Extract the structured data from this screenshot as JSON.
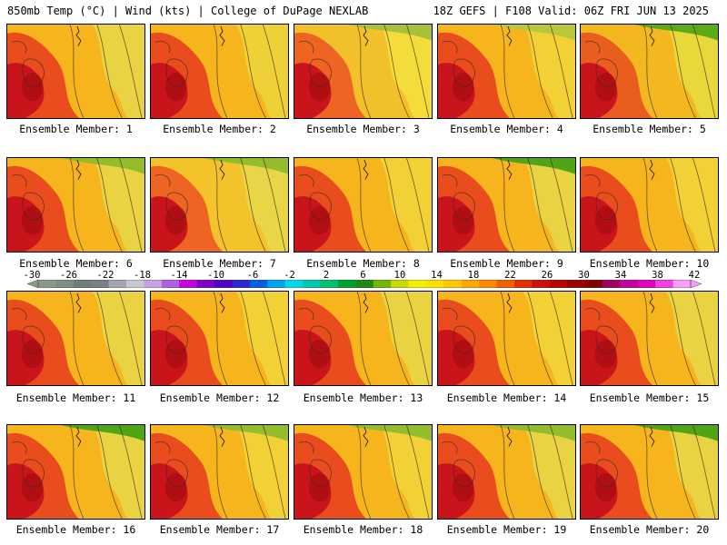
{
  "header": {
    "left": "850mb Temp (°C) | Wind (kts) | College of DuPage NEXLAB",
    "right": "18Z GEFS | F108 Valid: 06Z FRI JUN 13 2025"
  },
  "members": [
    "Ensemble Member: 1",
    "Ensemble Member: 2",
    "Ensemble Member: 3",
    "Ensemble Member: 4",
    "Ensemble Member: 5",
    "Ensemble Member: 6",
    "Ensemble Member: 7",
    "Ensemble Member: 8",
    "Ensemble Member: 9",
    "Ensemble Member: 10",
    "Ensemble Member: 11",
    "Ensemble Member: 12",
    "Ensemble Member: 13",
    "Ensemble Member: 14",
    "Ensemble Member: 15",
    "Ensemble Member: 16",
    "Ensemble Member: 17",
    "Ensemble Member: 18",
    "Ensemble Member: 19",
    "Ensemble Member: 20"
  ],
  "colorbar": {
    "tick_labels": [
      "-30",
      "-26",
      "-22",
      "-18",
      "-14",
      "-10",
      "-6",
      "-2",
      "2",
      "6",
      "10",
      "14",
      "18",
      "22",
      "26",
      "30",
      "34",
      "38",
      "42"
    ],
    "colors": [
      "#8a9a8a",
      "#7d8e84",
      "#6e7e78",
      "#7a7f86",
      "#a3a6ac",
      "#c5c9cd",
      "#c8a2e0",
      "#b35ee0",
      "#c800e0",
      "#8000c8",
      "#5000c8",
      "#2a2ad0",
      "#0060e0",
      "#00a0f0",
      "#00d8e8",
      "#00c8b0",
      "#00c070",
      "#00a030",
      "#1a8a10",
      "#70b800",
      "#c8d800",
      "#f0f000",
      "#ffe000",
      "#ffc800",
      "#ffa800",
      "#ff8800",
      "#f06000",
      "#e03000",
      "#d01010",
      "#b80000",
      "#9a0000",
      "#800000",
      "#a00060",
      "#c000a0",
      "#e000c0",
      "#f040e0",
      "#f8a0f8"
    ]
  },
  "panel_fills": [
    {
      "base": "#f6b51c",
      "warm": "#e8411f",
      "hot": "#c9141b",
      "cool": "#e6d84a",
      "green": null
    },
    {
      "base": "#f6b51c",
      "warm": "#e8411f",
      "hot": "#c9141b",
      "cool": "#ecd53c",
      "green": null
    },
    {
      "base": "#f2c02a",
      "warm": "#ec5a22",
      "hot": "#c9141b",
      "cool": "#f4e13e",
      "green": "#a9c13a"
    },
    {
      "base": "#f6b51c",
      "warm": "#e8411f",
      "hot": "#c9141b",
      "cool": "#f0d63a",
      "green": "#b8c83a"
    },
    {
      "base": "#f3b820",
      "warm": "#e8541f",
      "hot": "#c9141b",
      "cool": "#e6dd40",
      "green": "#5caa1a"
    },
    {
      "base": "#f6b51c",
      "warm": "#e8411f",
      "hot": "#c9141b",
      "cool": "#e6d84a",
      "green": "#93bd2c"
    },
    {
      "base": "#f4c22a",
      "warm": "#ec5a22",
      "hot": "#c9141b",
      "cool": "#e6d84a",
      "green": "#93bd2c"
    },
    {
      "base": "#f6b51c",
      "warm": "#e8411f",
      "hot": "#c9141b",
      "cool": "#f0d63a",
      "green": null
    },
    {
      "base": "#f6b51c",
      "warm": "#e8411f",
      "hot": "#c9141b",
      "cool": "#e6d84a",
      "green": "#4ea616"
    },
    {
      "base": "#f6b51c",
      "warm": "#e8411f",
      "hot": "#c9141b",
      "cool": "#f0d63a",
      "green": null
    },
    {
      "base": "#f6b51c",
      "warm": "#e8411f",
      "hot": "#c9141b",
      "cool": "#e6d84a",
      "green": null
    },
    {
      "base": "#f6b51c",
      "warm": "#e8411f",
      "hot": "#c9141b",
      "cool": "#f0d63a",
      "green": null
    },
    {
      "base": "#f6b51c",
      "warm": "#e8411f",
      "hot": "#c9141b",
      "cool": "#e6d84a",
      "green": null
    },
    {
      "base": "#f6b51c",
      "warm": "#e8411f",
      "hot": "#c9141b",
      "cool": "#f0d63a",
      "green": null
    },
    {
      "base": "#f6b51c",
      "warm": "#e8411f",
      "hot": "#c9141b",
      "cool": "#e6d84a",
      "green": null
    },
    {
      "base": "#f6b51c",
      "warm": "#e8411f",
      "hot": "#c9141b",
      "cool": "#e6d84a",
      "green": "#4ea616"
    },
    {
      "base": "#f6b51c",
      "warm": "#e8411f",
      "hot": "#c9141b",
      "cool": "#f0d63a",
      "green": "#93bd2c"
    },
    {
      "base": "#f6b51c",
      "warm": "#e8411f",
      "hot": "#c9141b",
      "cool": "#f0d63a",
      "green": "#93bd2c"
    },
    {
      "base": "#f6b51c",
      "warm": "#e8411f",
      "hot": "#c9141b",
      "cool": "#e6d84a",
      "green": "#93bd2c"
    },
    {
      "base": "#f6b51c",
      "warm": "#e8411f",
      "hot": "#c9141b",
      "cool": "#e6d84a",
      "green": "#4ea616"
    }
  ]
}
